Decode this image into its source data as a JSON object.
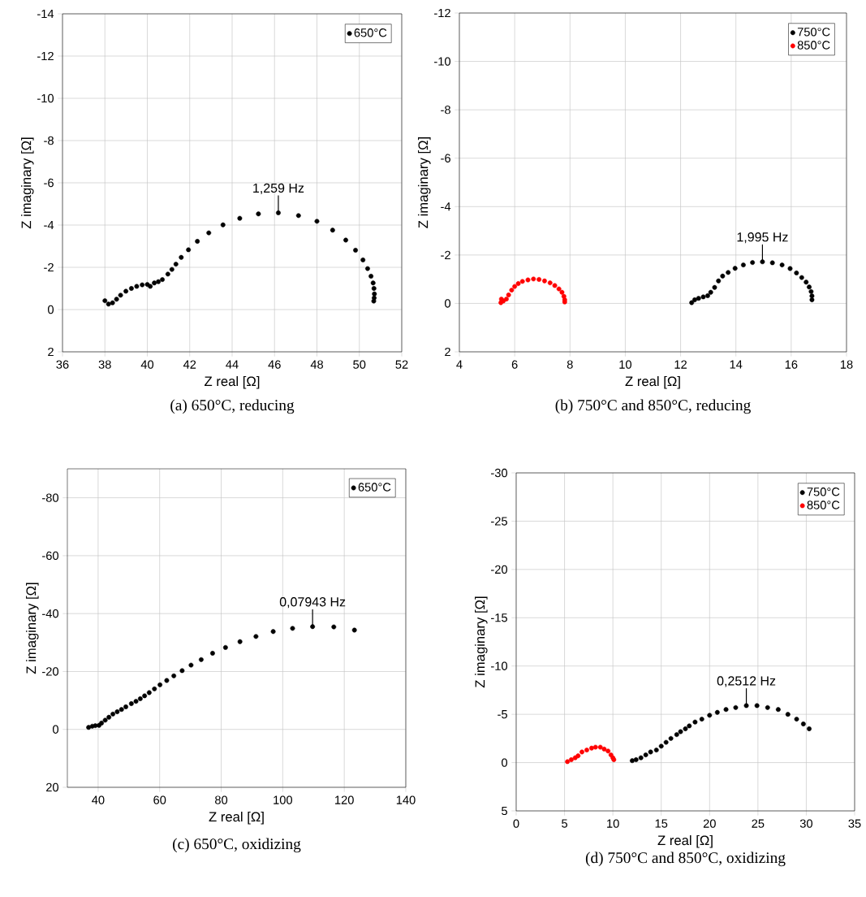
{
  "chart_data": [
    {
      "type": "scatter",
      "xlabel": "Z real [Ω]",
      "ylabel": "Z imaginary [Ω]",
      "xlim": [
        36,
        52
      ],
      "xticks": [
        36,
        38,
        40,
        42,
        44,
        46,
        48,
        50,
        52
      ],
      "ylim": [
        2,
        -14
      ],
      "yticks": [
        -14,
        -12,
        -10,
        -8,
        -6,
        -4,
        -2,
        0,
        2
      ],
      "grid": true,
      "legend": "top right",
      "marker": "circle",
      "annotations": [
        "(a) 650°C, reducing",
        {
          "text": "1,259 Hz",
          "x": 46.18,
          "y": -4.58
        }
      ],
      "series": [
        {
          "name": "650°C",
          "color": "#000000",
          "x": [
            38.0,
            38.17,
            38.36,
            38.55,
            38.74,
            38.99,
            39.25,
            39.5,
            39.76,
            40.0,
            40.14,
            40.33,
            40.52,
            40.71,
            40.97,
            41.16,
            41.35,
            41.6,
            41.94,
            42.36,
            42.9,
            43.57,
            44.36,
            45.24,
            46.18,
            47.13,
            48.0,
            48.74,
            49.36,
            49.82,
            50.17,
            50.39,
            50.55,
            50.65,
            50.69,
            50.71,
            50.7,
            50.68
          ],
          "values": [
            -0.42,
            -0.26,
            -0.32,
            -0.49,
            -0.68,
            -0.87,
            -1.0,
            -1.1,
            -1.17,
            -1.19,
            -1.1,
            -1.26,
            -1.32,
            -1.42,
            -1.68,
            -1.9,
            -2.15,
            -2.47,
            -2.83,
            -3.23,
            -3.63,
            -4.01,
            -4.32,
            -4.53,
            -4.58,
            -4.45,
            -4.18,
            -3.76,
            -3.29,
            -2.81,
            -2.35,
            -1.94,
            -1.58,
            -1.26,
            -1.0,
            -0.74,
            -0.55,
            -0.4
          ]
        }
      ]
    },
    {
      "type": "scatter",
      "xlabel": "Z real [Ω]",
      "ylabel": "Z imaginary [Ω]",
      "xlim": [
        4,
        18
      ],
      "xticks": [
        4,
        6,
        8,
        10,
        12,
        14,
        16,
        18
      ],
      "ylim": [
        2,
        -12
      ],
      "yticks": [
        -12,
        -10,
        -8,
        -6,
        -4,
        -2,
        0,
        2
      ],
      "grid": true,
      "legend": "top right",
      "marker": "circle",
      "annotations": [
        "(b) 750°C and 850°C, reducing",
        {
          "text": "1,995 Hz",
          "x": 14.96,
          "y": -1.72
        }
      ],
      "series": [
        {
          "name": "750°C",
          "color": "#000000",
          "x": [
            12.4,
            12.51,
            12.65,
            12.82,
            12.98,
            13.09,
            13.23,
            13.37,
            13.52,
            13.72,
            13.97,
            14.27,
            14.6,
            14.96,
            15.32,
            15.67,
            15.96,
            16.19,
            16.38,
            16.54,
            16.65,
            16.72,
            16.75,
            16.75
          ],
          "values": [
            -0.03,
            -0.15,
            -0.21,
            -0.27,
            -0.32,
            -0.46,
            -0.66,
            -0.93,
            -1.13,
            -1.28,
            -1.45,
            -1.59,
            -1.69,
            -1.72,
            -1.68,
            -1.59,
            -1.44,
            -1.26,
            -1.07,
            -0.88,
            -0.68,
            -0.49,
            -0.31,
            -0.15
          ]
        },
        {
          "name": "850°C",
          "color": "#ff0000",
          "x": [
            5.5,
            5.52,
            5.59,
            5.7,
            5.78,
            5.89,
            6.0,
            6.13,
            6.28,
            6.48,
            6.68,
            6.88,
            7.08,
            7.28,
            7.45,
            7.6,
            7.71,
            7.78,
            7.81,
            7.81
          ],
          "values": [
            -0.03,
            -0.18,
            -0.1,
            -0.18,
            -0.35,
            -0.55,
            -0.7,
            -0.82,
            -0.91,
            -0.97,
            -1.01,
            -0.99,
            -0.93,
            -0.85,
            -0.74,
            -0.6,
            -0.46,
            -0.29,
            -0.15,
            -0.06
          ]
        }
      ]
    },
    {
      "type": "scatter",
      "xlabel": "Z real [Ω]",
      "ylabel": "Z imaginary [Ω]",
      "xlim": [
        30,
        140
      ],
      "xticks": [
        40,
        60,
        80,
        100,
        120,
        140
      ],
      "ylim": [
        20,
        -90
      ],
      "yticks": [
        -80,
        -60,
        -40,
        -20,
        0,
        20
      ],
      "grid": true,
      "legend": "top right",
      "marker": "circle",
      "annotations": [
        "(c) 650°C, oxidizing",
        {
          "text": "0,07943 Hz",
          "x": 109.7,
          "y": -35.5
        }
      ],
      "series": [
        {
          "name": "650°C",
          "color": "#000000",
          "x": [
            36.9,
            38.1,
            39.1,
            40.3,
            41.1,
            42.3,
            43.5,
            44.8,
            46.2,
            47.6,
            49.0,
            50.8,
            52.3,
            53.7,
            55.1,
            56.6,
            58.3,
            60.1,
            62.3,
            64.6,
            67.3,
            70.2,
            73.5,
            77.2,
            81.4,
            86.1,
            91.3,
            96.9,
            103.2,
            109.7,
            116.6,
            123.3
          ],
          "values": [
            -0.7,
            -1.1,
            -1.3,
            -1.4,
            -2.2,
            -3.2,
            -4.2,
            -5.3,
            -6.1,
            -6.9,
            -7.8,
            -8.9,
            -9.7,
            -10.6,
            -11.6,
            -12.7,
            -14.0,
            -15.4,
            -16.9,
            -18.5,
            -20.3,
            -22.2,
            -24.1,
            -26.3,
            -28.3,
            -30.3,
            -32.1,
            -33.8,
            -34.9,
            -35.5,
            -35.4,
            -34.3
          ]
        }
      ]
    },
    {
      "type": "scatter",
      "xlabel": "Z real [Ω]",
      "ylabel": "Z imaginary [Ω]",
      "xlim": [
        0,
        35
      ],
      "xticks": [
        0,
        5,
        10,
        15,
        20,
        25,
        30,
        35
      ],
      "ylim": [
        5,
        -30
      ],
      "yticks": [
        -30,
        -25,
        -20,
        -15,
        -10,
        -5,
        0,
        5
      ],
      "grid": true,
      "legend": "top right",
      "marker": "circle",
      "annotations": [
        "(d) 750°C and 850°C, oxidizing",
        {
          "text": "0,2512 Hz",
          "x": 23.8,
          "y": -5.9
        }
      ],
      "series": [
        {
          "name": "750°C",
          "color": "#000000",
          "x": [
            12.0,
            12.4,
            12.9,
            13.4,
            13.9,
            14.5,
            15.0,
            15.5,
            16.0,
            16.6,
            17.0,
            17.5,
            17.9,
            18.5,
            19.2,
            20.0,
            20.8,
            21.7,
            22.7,
            23.8,
            24.9,
            26.0,
            27.1,
            28.1,
            29.0,
            29.7,
            30.3
          ],
          "values": [
            -0.2,
            -0.3,
            -0.5,
            -0.8,
            -1.1,
            -1.3,
            -1.7,
            -2.1,
            -2.5,
            -2.9,
            -3.2,
            -3.5,
            -3.8,
            -4.2,
            -4.5,
            -4.9,
            -5.2,
            -5.5,
            -5.7,
            -5.9,
            -5.9,
            -5.7,
            -5.5,
            -5.0,
            -4.5,
            -4.0,
            -3.5
          ]
        },
        {
          "name": "850°C",
          "color": "#ff0000",
          "x": [
            5.3,
            5.7,
            6.1,
            6.4,
            6.8,
            7.3,
            7.8,
            8.2,
            8.7,
            9.1,
            9.5,
            9.8,
            10.0,
            10.1
          ],
          "values": [
            -0.1,
            -0.3,
            -0.5,
            -0.7,
            -1.1,
            -1.3,
            -1.5,
            -1.6,
            -1.6,
            -1.4,
            -1.2,
            -0.8,
            -0.5,
            -0.3
          ]
        }
      ]
    }
  ]
}
